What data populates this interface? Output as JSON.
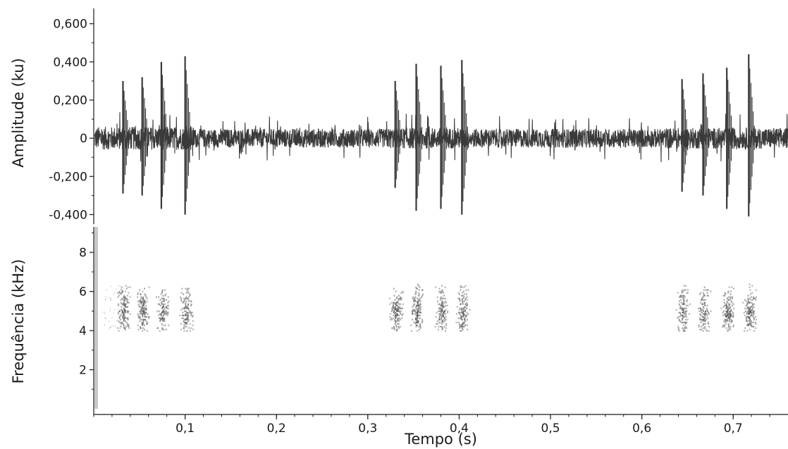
{
  "chart_data": [
    {
      "type": "line",
      "panel": "oscillogram",
      "ylabel": "Amplitude (ku)",
      "ylim": [
        -0.45,
        0.68
      ],
      "yticks": [
        {
          "value": 0.6,
          "label": "0,600"
        },
        {
          "value": 0.4,
          "label": "0,400"
        },
        {
          "value": 0.2,
          "label": "0,200"
        },
        {
          "value": 0.0,
          "label": "0"
        },
        {
          "value": -0.2,
          "label": "-0,200"
        },
        {
          "value": -0.4,
          "label": "-0,400"
        }
      ],
      "xlim": [
        0,
        0.76
      ],
      "noise_amplitude": 0.09,
      "noise_bursts": [
        {
          "start": 0.0,
          "end": 0.11,
          "level": 0.11
        },
        {
          "start": 0.32,
          "end": 0.41,
          "level": 0.1
        },
        {
          "start": 0.62,
          "end": 0.76,
          "level": 0.1
        }
      ],
      "pulses": [
        {
          "t": 0.032,
          "max": 0.3,
          "min": -0.29
        },
        {
          "t": 0.053,
          "max": 0.32,
          "min": -0.3
        },
        {
          "t": 0.074,
          "max": 0.4,
          "min": -0.37
        },
        {
          "t": 0.1,
          "max": 0.43,
          "min": -0.4
        },
        {
          "t": 0.33,
          "max": 0.3,
          "min": -0.26
        },
        {
          "t": 0.353,
          "max": 0.39,
          "min": -0.38
        },
        {
          "t": 0.38,
          "max": 0.38,
          "min": -0.37
        },
        {
          "t": 0.403,
          "max": 0.41,
          "min": -0.4
        },
        {
          "t": 0.644,
          "max": 0.31,
          "min": -0.28
        },
        {
          "t": 0.667,
          "max": 0.34,
          "min": -0.3
        },
        {
          "t": 0.693,
          "max": 0.37,
          "min": -0.37
        },
        {
          "t": 0.717,
          "max": 0.44,
          "min": -0.41
        }
      ]
    },
    {
      "type": "heatmap",
      "panel": "spectrogram",
      "ylabel": "Frequência (kHz)",
      "xlabel": "Tempo (s)",
      "ylim": [
        0,
        9.3
      ],
      "yticks": [
        {
          "value": 8,
          "label": "8"
        },
        {
          "value": 6,
          "label": "6"
        },
        {
          "value": 4,
          "label": "4"
        },
        {
          "value": 2,
          "label": "2"
        }
      ],
      "xlim": [
        0,
        0.76
      ],
      "xticks": [
        {
          "value": 0.1,
          "label": "0,1"
        },
        {
          "value": 0.2,
          "label": "0,2"
        },
        {
          "value": 0.3,
          "label": "0,3"
        },
        {
          "value": 0.4,
          "label": "0,4"
        },
        {
          "value": 0.5,
          "label": "0,5"
        },
        {
          "value": 0.6,
          "label": "0,6"
        },
        {
          "value": 0.7,
          "label": "0,7"
        }
      ],
      "energy_band_khz": [
        4.0,
        6.4
      ],
      "energy_center_khz": 5.0,
      "colormap": [
        "#ffffff",
        "#333333"
      ],
      "bursts": [
        {
          "t": 0.032,
          "intensity": 0.75
        },
        {
          "t": 0.053,
          "intensity": 0.85
        },
        {
          "t": 0.074,
          "intensity": 0.8
        },
        {
          "t": 0.1,
          "intensity": 0.75
        },
        {
          "t": 0.33,
          "intensity": 0.8
        },
        {
          "t": 0.353,
          "intensity": 0.9
        },
        {
          "t": 0.38,
          "intensity": 0.8
        },
        {
          "t": 0.403,
          "intensity": 0.75
        },
        {
          "t": 0.644,
          "intensity": 0.7
        },
        {
          "t": 0.667,
          "intensity": 0.8
        },
        {
          "t": 0.693,
          "intensity": 0.85
        },
        {
          "t": 0.717,
          "intensity": 0.85
        }
      ]
    }
  ],
  "colors": {
    "waveform": "#3a3a3a",
    "axis": "#1a1a1a",
    "background": "#ffffff",
    "spectrogram_left_edge": "#c8c8c8"
  }
}
